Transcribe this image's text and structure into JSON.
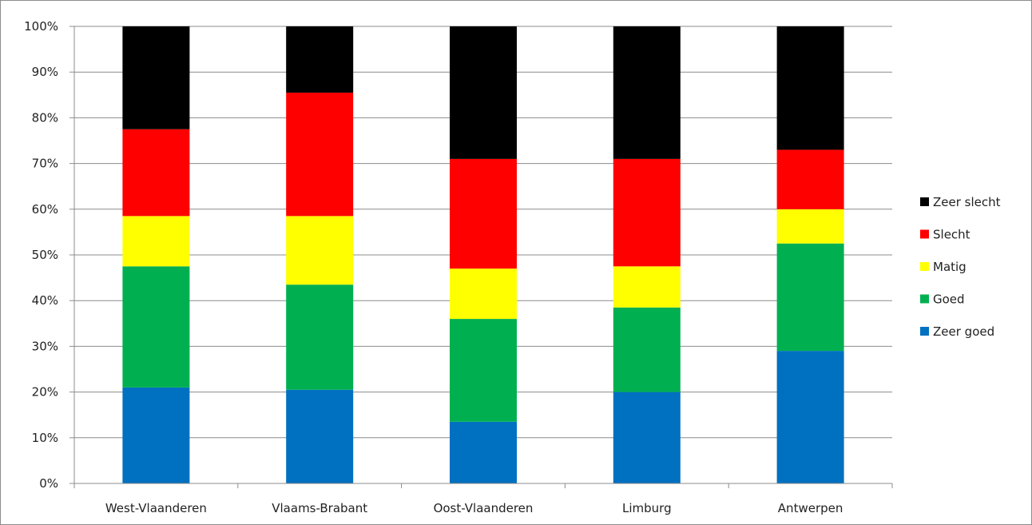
{
  "chart_data": {
    "type": "bar",
    "stacked": true,
    "percent": true,
    "categories": [
      "West-Vlaanderen",
      "Vlaams-Brabant",
      "Oost-Vlaanderen",
      "Limburg",
      "Antwerpen"
    ],
    "series": [
      {
        "name": "Zeer goed",
        "color": "#0070C0",
        "values": [
          21.0,
          20.5,
          13.5,
          20.0,
          29.0
        ]
      },
      {
        "name": "Goed",
        "color": "#00B050",
        "values": [
          26.5,
          23.0,
          22.5,
          18.5,
          23.5
        ]
      },
      {
        "name": "Matig",
        "color": "#FFFF00",
        "values": [
          11.0,
          15.0,
          11.0,
          9.0,
          7.5
        ]
      },
      {
        "name": "Slecht",
        "color": "#FF0000",
        "values": [
          19.0,
          27.0,
          24.0,
          23.5,
          13.0
        ]
      },
      {
        "name": "Zeer slecht",
        "color": "#000000",
        "values": [
          22.5,
          14.5,
          29.0,
          29.0,
          27.0
        ]
      }
    ],
    "ylim": [
      0,
      100
    ],
    "yticks": [
      "0%",
      "10%",
      "20%",
      "30%",
      "40%",
      "50%",
      "60%",
      "70%",
      "80%",
      "90%",
      "100%"
    ],
    "grid": true,
    "legend_position": "right",
    "legend_order": [
      "Zeer slecht",
      "Slecht",
      "Matig",
      "Goed",
      "Zeer goed"
    ]
  }
}
